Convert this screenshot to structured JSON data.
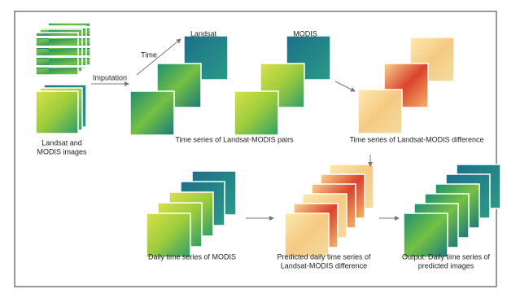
{
  "inputs": {
    "lines": [
      "Landsat and",
      "MODIS images"
    ]
  },
  "imputation": "Imputation",
  "time": "Time",
  "landsat": "Landsat",
  "modis": "MODIS",
  "pairs": "Time series of Landsat-MODIS pairs",
  "difference": "Time series of Landsat-MODIS difference",
  "daily_modis": "Daily time series of MODIS",
  "predicted_difference": {
    "lines": [
      "Predicted daily time series of",
      "Landsat-MODIS difference"
    ]
  },
  "output": {
    "lines": [
      "Output: Daily time series of",
      "predicted images"
    ]
  }
}
